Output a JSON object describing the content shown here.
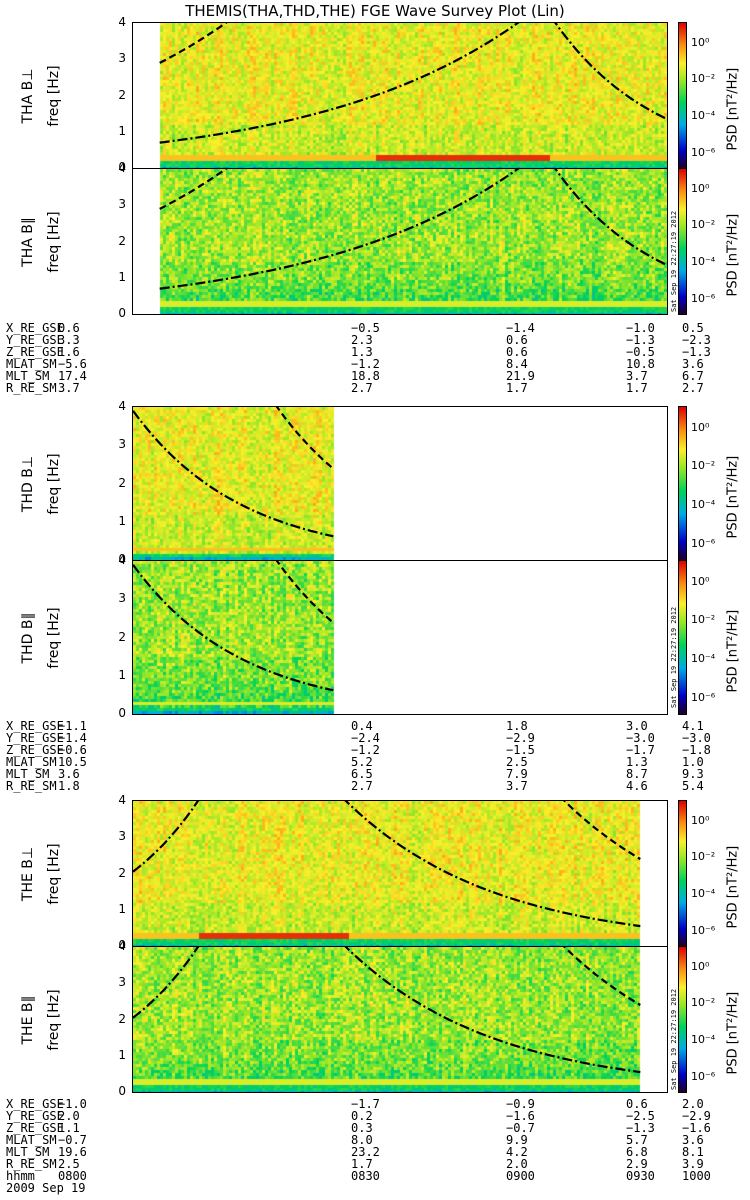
{
  "title": "THEMIS(THA,THD,THE) FGE Wave Survey Plot (Lin)",
  "stamp": "Sat Sep 19 22:27:19 2012",
  "colorbar": {
    "label": "PSD [nT²/Hz]",
    "ticks": [
      "10⁰",
      "10⁻²",
      "10⁻⁴",
      "10⁻⁶"
    ]
  },
  "yticks": [
    "4",
    "3",
    "2",
    "1",
    "0"
  ],
  "chart_data": [
    {
      "type": "heatmap",
      "probe": "THA",
      "component": "B⊥",
      "ylabel_top": "THA B⊥",
      "ylabel": "freq [Hz]",
      "ylim": [
        0,
        4
      ],
      "xlim": [
        "0800",
        "1000"
      ],
      "data_start": "0806",
      "data_end": "1000"
    },
    {
      "type": "heatmap",
      "probe": "THA",
      "component": "B∥",
      "ylabel_top": "THA B∥",
      "ylabel": "freq [Hz]",
      "ylim": [
        0,
        4
      ],
      "xlim": [
        "0800",
        "1000"
      ],
      "data_start": "0806",
      "data_end": "1000"
    },
    {
      "type": "heatmap",
      "probe": "THD",
      "component": "B⊥",
      "ylabel_top": "THD B⊥",
      "ylabel": "freq [Hz]",
      "ylim": [
        0,
        4
      ],
      "xlim": [
        "0800",
        "1000"
      ],
      "data_start": "0800",
      "data_end": "0845"
    },
    {
      "type": "heatmap",
      "probe": "THD",
      "component": "B∥",
      "ylabel_top": "THD B∥",
      "ylabel": "freq [Hz]",
      "ylim": [
        0,
        4
      ],
      "xlim": [
        "0800",
        "1000"
      ],
      "data_start": "0800",
      "data_end": "0845"
    },
    {
      "type": "heatmap",
      "probe": "THE",
      "component": "B⊥",
      "ylabel_top": "THE B⊥",
      "ylabel": "freq [Hz]",
      "ylim": [
        0,
        4
      ],
      "xlim": [
        "0800",
        "1000"
      ],
      "data_start": "0800",
      "data_end": "0954"
    },
    {
      "type": "heatmap",
      "probe": "THE",
      "component": "B∥",
      "ylabel_top": "THE B∥",
      "ylabel": "freq [Hz]",
      "ylim": [
        0,
        4
      ],
      "xlim": [
        "0800",
        "1000"
      ],
      "data_start": "0800",
      "data_end": "0954"
    }
  ],
  "ephemeris": [
    {
      "rows": [
        [
          "X_RE_GSE",
          "0.6",
          "−0.5",
          "−1.4",
          "−1.0",
          "0.5"
        ],
        [
          "Y_RE_GSE",
          "3.3",
          "2.3",
          "0.6",
          "−1.3",
          "−2.3"
        ],
        [
          "Z_RE_GSE",
          "1.6",
          "1.3",
          "0.6",
          "−0.5",
          "−1.3"
        ],
        [
          "MLAT_SM",
          "−5.6",
          "−1.2",
          "8.4",
          "10.8",
          "3.6"
        ],
        [
          "MLT_SM",
          "17.4",
          "18.8",
          "21.9",
          "3.7",
          "6.7"
        ],
        [
          "R_RE_SM",
          "3.7",
          "2.7",
          "1.7",
          "1.7",
          "2.7"
        ]
      ]
    },
    {
      "rows": [
        [
          "X_RE_GSE",
          "−1.1",
          "0.4",
          "1.8",
          "3.0",
          "4.1"
        ],
        [
          "Y_RE_GSE",
          "−1.4",
          "−2.4",
          "−2.9",
          "−3.0",
          "−3.0"
        ],
        [
          "Z_RE_GSE",
          "−0.6",
          "−1.2",
          "−1.5",
          "−1.7",
          "−1.8"
        ],
        [
          "MLAT_SM",
          "10.5",
          "5.2",
          "2.5",
          "1.3",
          "1.0"
        ],
        [
          "MLT_SM",
          "3.6",
          "6.5",
          "7.9",
          "8.7",
          "9.3"
        ],
        [
          "R_RE_SM",
          "1.8",
          "2.7",
          "3.7",
          "4.6",
          "5.4"
        ]
      ]
    },
    {
      "rows": [
        [
          "X_RE_GSE",
          "−1.0",
          "−1.7",
          "−0.9",
          "0.6",
          "2.0"
        ],
        [
          "Y_RE_GSE",
          "2.0",
          "0.2",
          "−1.6",
          "−2.5",
          "−2.9"
        ],
        [
          "Z_RE_GSE",
          "1.1",
          "0.3",
          "−0.7",
          "−1.3",
          "−1.6"
        ],
        [
          "MLAT_SM",
          "−0.7",
          "8.0",
          "9.9",
          "5.7",
          "3.6"
        ],
        [
          "MLT_SM",
          "19.6",
          "23.2",
          "4.2",
          "6.8",
          "8.1"
        ],
        [
          "R_RE_SM",
          "2.5",
          "1.7",
          "2.0",
          "2.9",
          "3.9"
        ],
        [
          "hhmm",
          "0800",
          "0830",
          "0900",
          "0930",
          "1000"
        ],
        [
          "2009 Sep 19",
          "",
          "",
          "",
          "",
          ""
        ]
      ]
    }
  ]
}
